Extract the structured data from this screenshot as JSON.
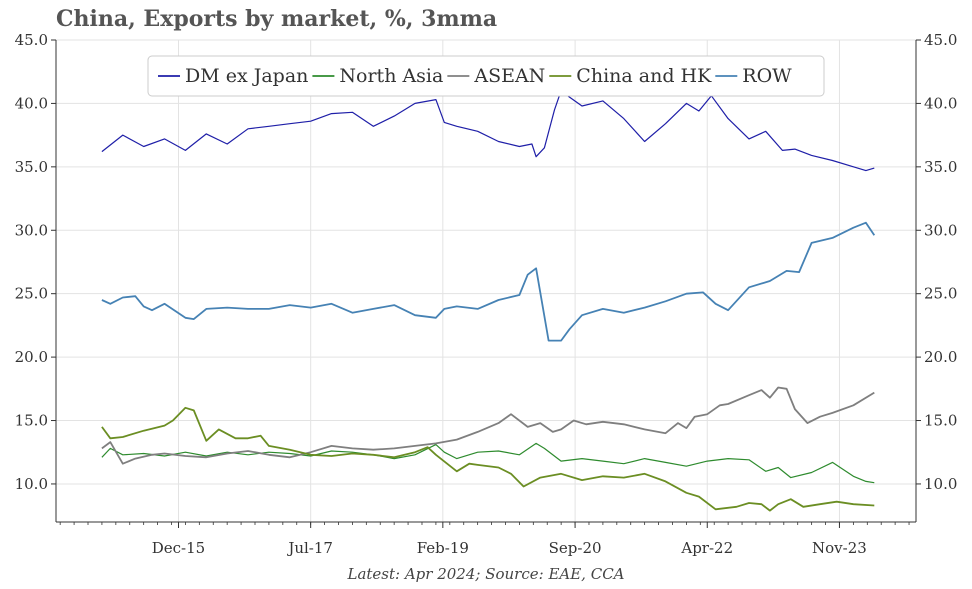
{
  "chart_data": {
    "type": "line",
    "title": "China, Exports by market, %, 3mma",
    "source": "Latest: Apr 2024; Source: EAE, CCA",
    "xlabel": "",
    "ylabel": "",
    "ylim": [
      7,
      45
    ],
    "yticks": [
      10.0,
      15.0,
      20.0,
      25.0,
      30.0,
      35.0,
      40.0,
      45.0
    ],
    "ytick_labels": [
      "10.0",
      "15.0",
      "20.0",
      "25.0",
      "30.0",
      "35.0",
      "40.0",
      "45.0"
    ],
    "xlim": [
      2014.45,
      2024.75
    ],
    "xticks": [
      2015.917,
      2017.5,
      2019.083,
      2020.667,
      2022.25,
      2023.833
    ],
    "xtick_labels": [
      "Dec-15",
      "Jul-17",
      "Feb-19",
      "Sep-20",
      "Apr-22",
      "Nov-23"
    ],
    "grid": true,
    "legend_position": "top",
    "series": [
      {
        "name": "DM ex Japan",
        "color": "#1f1fa8",
        "points": [
          [
            2015.0,
            36.2
          ],
          [
            2015.25,
            37.5
          ],
          [
            2015.5,
            36.6
          ],
          [
            2015.75,
            37.2
          ],
          [
            2016.0,
            36.3
          ],
          [
            2016.25,
            37.6
          ],
          [
            2016.5,
            36.8
          ],
          [
            2016.75,
            38.0
          ],
          [
            2017.0,
            38.2
          ],
          [
            2017.25,
            38.4
          ],
          [
            2017.5,
            38.6
          ],
          [
            2017.75,
            39.2
          ],
          [
            2018.0,
            39.3
          ],
          [
            2018.25,
            38.2
          ],
          [
            2018.5,
            39.0
          ],
          [
            2018.75,
            40.0
          ],
          [
            2019.0,
            40.3
          ],
          [
            2019.1,
            38.5
          ],
          [
            2019.25,
            38.2
          ],
          [
            2019.5,
            37.8
          ],
          [
            2019.75,
            37.0
          ],
          [
            2020.0,
            36.6
          ],
          [
            2020.15,
            36.8
          ],
          [
            2020.2,
            35.8
          ],
          [
            2020.3,
            36.5
          ],
          [
            2020.42,
            39.5
          ],
          [
            2020.5,
            41.0
          ],
          [
            2020.6,
            40.5
          ],
          [
            2020.75,
            39.8
          ],
          [
            2021.0,
            40.2
          ],
          [
            2021.25,
            38.8
          ],
          [
            2021.5,
            37.0
          ],
          [
            2021.75,
            38.4
          ],
          [
            2022.0,
            40.0
          ],
          [
            2022.15,
            39.4
          ],
          [
            2022.3,
            40.6
          ],
          [
            2022.5,
            38.8
          ],
          [
            2022.75,
            37.2
          ],
          [
            2022.95,
            37.8
          ],
          [
            2023.15,
            36.3
          ],
          [
            2023.3,
            36.4
          ],
          [
            2023.5,
            35.9
          ],
          [
            2023.75,
            35.5
          ],
          [
            2024.0,
            35.0
          ],
          [
            2024.15,
            34.7
          ],
          [
            2024.25,
            34.9
          ]
        ]
      },
      {
        "name": "North Asia",
        "color": "#2e8b2e",
        "points": [
          [
            2015.0,
            12.1
          ],
          [
            2015.1,
            12.8
          ],
          [
            2015.25,
            12.3
          ],
          [
            2015.5,
            12.4
          ],
          [
            2015.75,
            12.2
          ],
          [
            2016.0,
            12.5
          ],
          [
            2016.25,
            12.2
          ],
          [
            2016.5,
            12.5
          ],
          [
            2016.75,
            12.3
          ],
          [
            2017.0,
            12.5
          ],
          [
            2017.25,
            12.4
          ],
          [
            2017.5,
            12.2
          ],
          [
            2017.75,
            12.6
          ],
          [
            2018.0,
            12.5
          ],
          [
            2018.25,
            12.3
          ],
          [
            2018.5,
            12.0
          ],
          [
            2018.75,
            12.3
          ],
          [
            2019.0,
            13.1
          ],
          [
            2019.1,
            12.5
          ],
          [
            2019.25,
            12.0
          ],
          [
            2019.5,
            12.5
          ],
          [
            2019.75,
            12.6
          ],
          [
            2020.0,
            12.3
          ],
          [
            2020.2,
            13.2
          ],
          [
            2020.3,
            12.8
          ],
          [
            2020.5,
            11.8
          ],
          [
            2020.75,
            12.0
          ],
          [
            2021.0,
            11.8
          ],
          [
            2021.25,
            11.6
          ],
          [
            2021.5,
            12.0
          ],
          [
            2021.75,
            11.7
          ],
          [
            2022.0,
            11.4
          ],
          [
            2022.25,
            11.8
          ],
          [
            2022.5,
            12.0
          ],
          [
            2022.75,
            11.9
          ],
          [
            2022.95,
            11.0
          ],
          [
            2023.1,
            11.3
          ],
          [
            2023.25,
            10.5
          ],
          [
            2023.5,
            10.9
          ],
          [
            2023.75,
            11.7
          ],
          [
            2024.0,
            10.6
          ],
          [
            2024.15,
            10.2
          ],
          [
            2024.25,
            10.1
          ]
        ]
      },
      {
        "name": "ASEAN",
        "color": "#7f7f7f",
        "points": [
          [
            2015.0,
            12.8
          ],
          [
            2015.1,
            13.3
          ],
          [
            2015.25,
            11.6
          ],
          [
            2015.4,
            12.0
          ],
          [
            2015.6,
            12.3
          ],
          [
            2015.75,
            12.4
          ],
          [
            2016.0,
            12.2
          ],
          [
            2016.25,
            12.1
          ],
          [
            2016.5,
            12.4
          ],
          [
            2016.75,
            12.6
          ],
          [
            2017.0,
            12.3
          ],
          [
            2017.25,
            12.1
          ],
          [
            2017.5,
            12.5
          ],
          [
            2017.75,
            13.0
          ],
          [
            2018.0,
            12.8
          ],
          [
            2018.25,
            12.7
          ],
          [
            2018.5,
            12.8
          ],
          [
            2018.75,
            13.0
          ],
          [
            2019.0,
            13.2
          ],
          [
            2019.25,
            13.5
          ],
          [
            2019.5,
            14.1
          ],
          [
            2019.75,
            14.8
          ],
          [
            2019.9,
            15.5
          ],
          [
            2020.1,
            14.5
          ],
          [
            2020.25,
            14.8
          ],
          [
            2020.4,
            14.1
          ],
          [
            2020.5,
            14.3
          ],
          [
            2020.65,
            15.0
          ],
          [
            2020.8,
            14.7
          ],
          [
            2021.0,
            14.9
          ],
          [
            2021.25,
            14.7
          ],
          [
            2021.5,
            14.3
          ],
          [
            2021.75,
            14.0
          ],
          [
            2021.9,
            14.8
          ],
          [
            2022.0,
            14.4
          ],
          [
            2022.1,
            15.3
          ],
          [
            2022.25,
            15.5
          ],
          [
            2022.4,
            16.2
          ],
          [
            2022.5,
            16.3
          ],
          [
            2022.75,
            17.0
          ],
          [
            2022.9,
            17.4
          ],
          [
            2023.0,
            16.8
          ],
          [
            2023.1,
            17.6
          ],
          [
            2023.2,
            17.5
          ],
          [
            2023.3,
            15.9
          ],
          [
            2023.45,
            14.8
          ],
          [
            2023.6,
            15.3
          ],
          [
            2023.75,
            15.6
          ],
          [
            2024.0,
            16.2
          ],
          [
            2024.25,
            17.2
          ]
        ]
      },
      {
        "name": "China and HK",
        "color": "#6b8e23",
        "points": [
          [
            2015.0,
            14.5
          ],
          [
            2015.1,
            13.6
          ],
          [
            2015.25,
            13.7
          ],
          [
            2015.5,
            14.2
          ],
          [
            2015.75,
            14.6
          ],
          [
            2015.85,
            15.0
          ],
          [
            2016.0,
            16.0
          ],
          [
            2016.1,
            15.8
          ],
          [
            2016.25,
            13.4
          ],
          [
            2016.4,
            14.3
          ],
          [
            2016.6,
            13.6
          ],
          [
            2016.75,
            13.6
          ],
          [
            2016.9,
            13.8
          ],
          [
            2017.0,
            13.0
          ],
          [
            2017.25,
            12.7
          ],
          [
            2017.5,
            12.3
          ],
          [
            2017.75,
            12.2
          ],
          [
            2018.0,
            12.4
          ],
          [
            2018.25,
            12.3
          ],
          [
            2018.5,
            12.1
          ],
          [
            2018.75,
            12.5
          ],
          [
            2018.9,
            12.9
          ],
          [
            2019.0,
            12.3
          ],
          [
            2019.25,
            11.0
          ],
          [
            2019.4,
            11.6
          ],
          [
            2019.5,
            11.5
          ],
          [
            2019.75,
            11.3
          ],
          [
            2019.9,
            10.8
          ],
          [
            2020.05,
            9.8
          ],
          [
            2020.25,
            10.5
          ],
          [
            2020.5,
            10.8
          ],
          [
            2020.75,
            10.3
          ],
          [
            2021.0,
            10.6
          ],
          [
            2021.25,
            10.5
          ],
          [
            2021.5,
            10.8
          ],
          [
            2021.75,
            10.2
          ],
          [
            2022.0,
            9.3
          ],
          [
            2022.15,
            9.0
          ],
          [
            2022.35,
            8.0
          ],
          [
            2022.6,
            8.2
          ],
          [
            2022.75,
            8.5
          ],
          [
            2022.9,
            8.4
          ],
          [
            2023.0,
            7.9
          ],
          [
            2023.1,
            8.4
          ],
          [
            2023.25,
            8.8
          ],
          [
            2023.4,
            8.2
          ],
          [
            2023.6,
            8.4
          ],
          [
            2023.8,
            8.6
          ],
          [
            2024.0,
            8.4
          ],
          [
            2024.25,
            8.3
          ]
        ]
      },
      {
        "name": "ROW",
        "color": "#4682b4",
        "points": [
          [
            2015.0,
            24.5
          ],
          [
            2015.1,
            24.2
          ],
          [
            2015.25,
            24.7
          ],
          [
            2015.4,
            24.8
          ],
          [
            2015.5,
            24.0
          ],
          [
            2015.6,
            23.7
          ],
          [
            2015.75,
            24.2
          ],
          [
            2016.0,
            23.1
          ],
          [
            2016.1,
            23.0
          ],
          [
            2016.25,
            23.8
          ],
          [
            2016.5,
            23.9
          ],
          [
            2016.75,
            23.8
          ],
          [
            2017.0,
            23.8
          ],
          [
            2017.25,
            24.1
          ],
          [
            2017.5,
            23.9
          ],
          [
            2017.75,
            24.2
          ],
          [
            2018.0,
            23.5
          ],
          [
            2018.25,
            23.8
          ],
          [
            2018.5,
            24.1
          ],
          [
            2018.75,
            23.3
          ],
          [
            2019.0,
            23.1
          ],
          [
            2019.1,
            23.8
          ],
          [
            2019.25,
            24.0
          ],
          [
            2019.5,
            23.8
          ],
          [
            2019.75,
            24.5
          ],
          [
            2020.0,
            24.9
          ],
          [
            2020.1,
            26.5
          ],
          [
            2020.2,
            27.0
          ],
          [
            2020.35,
            21.3
          ],
          [
            2020.5,
            21.3
          ],
          [
            2020.6,
            22.2
          ],
          [
            2020.75,
            23.3
          ],
          [
            2021.0,
            23.8
          ],
          [
            2021.25,
            23.5
          ],
          [
            2021.5,
            23.9
          ],
          [
            2021.75,
            24.4
          ],
          [
            2022.0,
            25.0
          ],
          [
            2022.2,
            25.1
          ],
          [
            2022.35,
            24.2
          ],
          [
            2022.5,
            23.7
          ],
          [
            2022.75,
            25.5
          ],
          [
            2023.0,
            26.0
          ],
          [
            2023.2,
            26.8
          ],
          [
            2023.35,
            26.7
          ],
          [
            2023.5,
            29.0
          ],
          [
            2023.75,
            29.4
          ],
          [
            2024.0,
            30.2
          ],
          [
            2024.15,
            30.6
          ],
          [
            2024.25,
            29.6
          ]
        ]
      }
    ]
  }
}
